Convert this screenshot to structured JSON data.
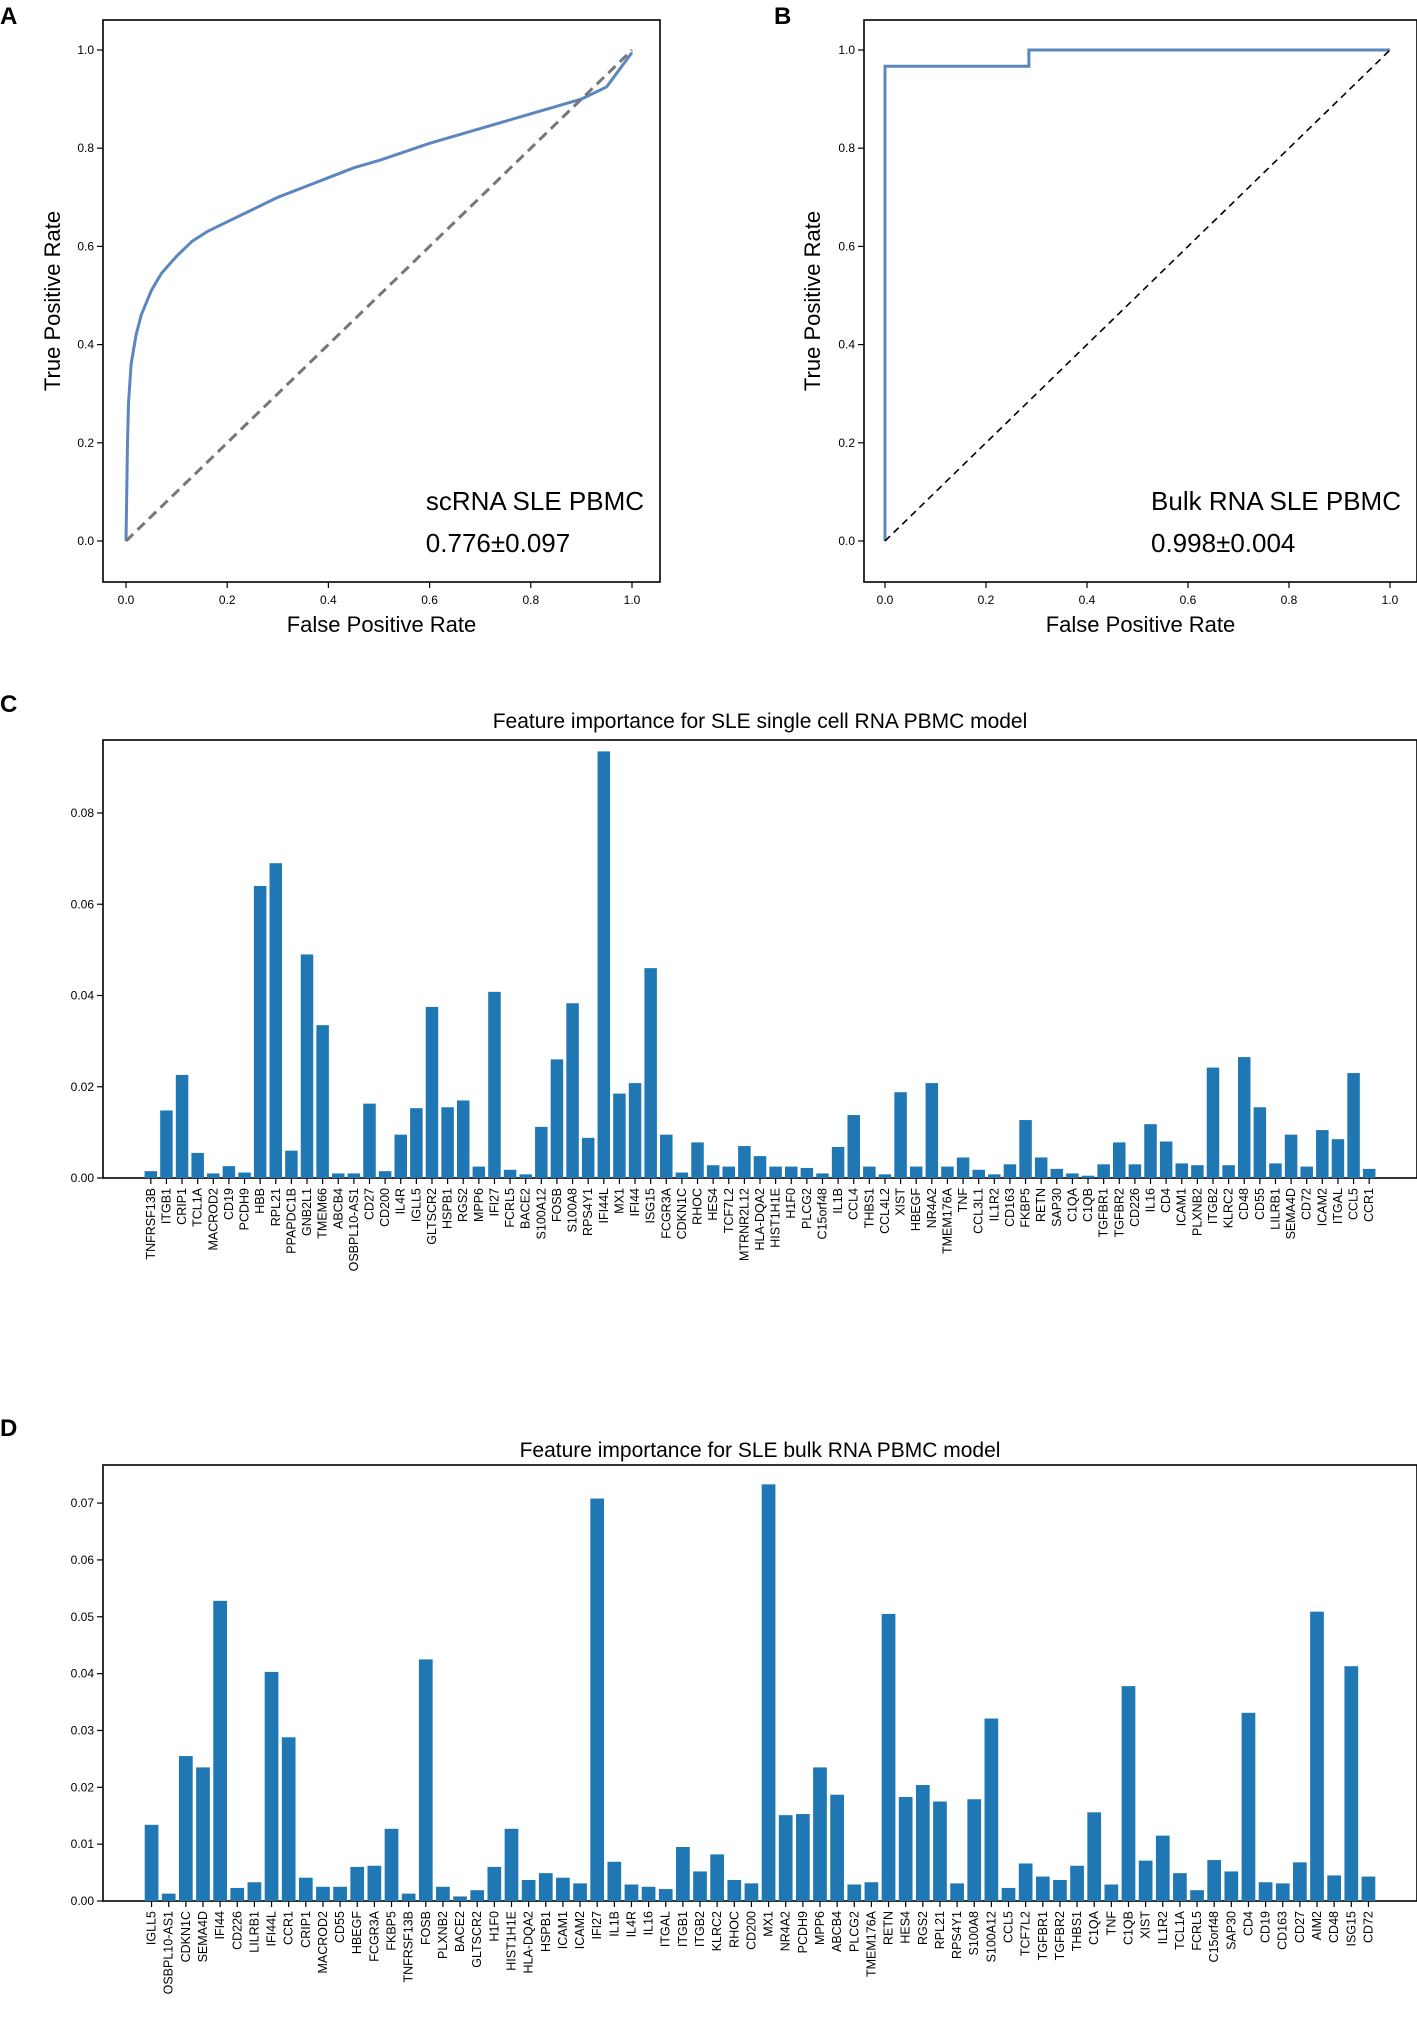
{
  "chart_data": [
    {
      "panel": "A",
      "type": "line",
      "title": "",
      "xlabel": "False Positive Rate",
      "ylabel": "True Positive Rate",
      "xlim": [
        0,
        1
      ],
      "ylim": [
        0,
        1
      ],
      "xticks": [
        "0.0",
        "0.2",
        "0.4",
        "0.6",
        "0.8",
        "1.0"
      ],
      "yticks": [
        "0.0",
        "0.2",
        "0.4",
        "0.6",
        "0.8",
        "1.0"
      ],
      "annotation_label": "scRNA SLE PBMC",
      "annotation_value": "0.776±0.097",
      "series": [
        {
          "name": "ROC",
          "style": "solid",
          "color": "#5b87be",
          "x": [
            0,
            0.003,
            0.005,
            0.01,
            0.02,
            0.03,
            0.05,
            0.07,
            0.1,
            0.13,
            0.16,
            0.2,
            0.25,
            0.3,
            0.35,
            0.4,
            0.45,
            0.5,
            0.6,
            0.7,
            0.8,
            0.9,
            0.95,
            1.0
          ],
          "y": [
            0,
            0.2,
            0.28,
            0.36,
            0.42,
            0.46,
            0.51,
            0.545,
            0.58,
            0.61,
            0.63,
            0.65,
            0.675,
            0.7,
            0.72,
            0.74,
            0.76,
            0.775,
            0.81,
            0.84,
            0.87,
            0.9,
            0.925,
            0.995
          ]
        },
        {
          "name": "chance",
          "style": "dashed",
          "color": "#777777",
          "x": [
            0,
            1
          ],
          "y": [
            0,
            1
          ]
        }
      ]
    },
    {
      "panel": "B",
      "type": "line",
      "title": "",
      "xlabel": "False Positive Rate",
      "ylabel": "True Positive Rate",
      "xlim": [
        0,
        1
      ],
      "ylim": [
        0,
        1
      ],
      "xticks": [
        "0.0",
        "0.2",
        "0.4",
        "0.6",
        "0.8",
        "1.0"
      ],
      "yticks": [
        "0.0",
        "0.2",
        "0.4",
        "0.6",
        "0.8",
        "1.0"
      ],
      "annotation_label": "Bulk RNA SLE PBMC",
      "annotation_value": "0.998±0.004",
      "series": [
        {
          "name": "ROC",
          "style": "solid",
          "color": "#5b87be",
          "x": [
            0,
            0,
            0.285,
            0.285,
            1.0
          ],
          "y": [
            0,
            0.967,
            0.967,
            1.0,
            1.0
          ]
        },
        {
          "name": "chance",
          "style": "dashed",
          "color": "#000000",
          "x": [
            0,
            1
          ],
          "y": [
            0,
            1
          ]
        }
      ]
    },
    {
      "panel": "C",
      "type": "bar",
      "title": "Feature importance for SLE single cell RNA PBMC model",
      "xlabel": "",
      "ylabel": "",
      "ylim": [
        0,
        0.096
      ],
      "yticks": [
        0,
        0.02,
        0.04,
        0.06,
        0.08
      ],
      "ytick_labels": [
        "0.00",
        "0.02",
        "0.04",
        "0.06",
        "0.08"
      ],
      "color": "#1f77b4",
      "categories": [
        "TNFRSF13B",
        "ITGB1",
        "CRIP1",
        "TCL1A",
        "MACROD2",
        "CD19",
        "PCDH9",
        "HBB",
        "RPL21",
        "PPAPDC1B",
        "GNB2L1",
        "TMEM66",
        "ABCB4",
        "OSBPL10-AS1",
        "CD27",
        "CD200",
        "IL4R",
        "IGLL5",
        "GLTSCR2",
        "HSPB1",
        "RGS2",
        "MPP6",
        "IFI27",
        "FCRL5",
        "BACE2",
        "S100A12",
        "FOSB",
        "S100A8",
        "RPS4Y1",
        "IFI44L",
        "MX1",
        "IFI44",
        "ISG15",
        "FCGR3A",
        "CDKN1C",
        "RHOC",
        "HES4",
        "TCF7L2",
        "MTRNR2L12",
        "HLA-DQA2",
        "HIST1H1E",
        "H1F0",
        "PLCG2",
        "C15orf48",
        "IL1B",
        "CCL4",
        "THBS1",
        "CCL4L2",
        "XIST",
        "HBEGF",
        "NR4A2",
        "TMEM176A",
        "TNF",
        "CCL3L1",
        "IL1R2",
        "CD163",
        "FKBP5",
        "RETN",
        "SAP30",
        "C1QA",
        "C1QB",
        "TGFBR1",
        "TGFBR2",
        "CD226",
        "IL16",
        "CD4",
        "ICAM1",
        "PLXNB2",
        "ITGB2",
        "KLRC2",
        "CD48",
        "CD55",
        "LILRB1",
        "SEMA4D",
        "CD72",
        "ICAM2",
        "ITGAL",
        "CCL5",
        "CCR1"
      ],
      "values": [
        0.0015,
        0.0148,
        0.0226,
        0.0055,
        0.001,
        0.0026,
        0.0012,
        0.064,
        0.069,
        0.006,
        0.049,
        0.0335,
        0.001,
        0.001,
        0.0163,
        0.0015,
        0.0095,
        0.0153,
        0.0375,
        0.0155,
        0.017,
        0.0025,
        0.0408,
        0.0018,
        0.0008,
        0.0112,
        0.026,
        0.0383,
        0.0088,
        0.0935,
        0.0185,
        0.0208,
        0.046,
        0.0095,
        0.0012,
        0.0078,
        0.0028,
        0.0025,
        0.007,
        0.0048,
        0.0025,
        0.0025,
        0.0022,
        0.001,
        0.0068,
        0.0138,
        0.0025,
        0.0008,
        0.0188,
        0.0025,
        0.0208,
        0.0025,
        0.0045,
        0.0018,
        0.0008,
        0.003,
        0.0127,
        0.0045,
        0.002,
        0.001,
        0.0005,
        0.003,
        0.0078,
        0.003,
        0.0118,
        0.008,
        0.0032,
        0.0028,
        0.0242,
        0.0028,
        0.0265,
        0.0155,
        0.0032,
        0.0095,
        0.0025,
        0.0105,
        0.0085,
        0.023,
        0.002
      ]
    },
    {
      "panel": "D",
      "type": "bar",
      "title": "Feature importance for SLE bulk RNA PBMC model",
      "xlabel": "",
      "ylabel": "",
      "ylim": [
        0,
        0.0767
      ],
      "yticks": [
        0,
        0.01,
        0.02,
        0.03,
        0.04,
        0.05,
        0.06,
        0.07
      ],
      "ytick_labels": [
        "0.00",
        "0.01",
        "0.02",
        "0.03",
        "0.04",
        "0.05",
        "0.06",
        "0.07"
      ],
      "color": "#1f77b4",
      "categories": [
        "IGLL5",
        "OSBPL10-AS1",
        "CDKN1C",
        "SEMA4D",
        "IFI44",
        "CD226",
        "LILRB1",
        "IFI44L",
        "CCR1",
        "CRIP1",
        "MACROD2",
        "CD55",
        "HBEGF",
        "FCGR3A",
        "FKBP5",
        "TNFRSF13B",
        "FOSB",
        "PLXNB2",
        "BACE2",
        "GLTSCR2",
        "H1F0",
        "HIST1H1E",
        "HLA-DQA2",
        "HSPB1",
        "ICAM1",
        "ICAM2",
        "IFI27",
        "IL1B",
        "IL4R",
        "IL16",
        "ITGAL",
        "ITGB1",
        "ITGB2",
        "KLRC2",
        "RHOC",
        "CD200",
        "MX1",
        "NR4A2",
        "PCDH9",
        "MPP6",
        "ABCB4",
        "PLCG2",
        "TMEM176A",
        "RETN",
        "HES4",
        "RGS2",
        "RPL21",
        "RPS4Y1",
        "S100A8",
        "S100A12",
        "CCL5",
        "TCF7L2",
        "TGFBR1",
        "TGFBR2",
        "THBS1",
        "C1QA",
        "TNF",
        "C1QB",
        "XIST",
        "IL1R2",
        "TCL1A",
        "FCRL5",
        "C15orf48",
        "SAP30",
        "CD4",
        "CD19",
        "CD163",
        "CD27",
        "AIM2",
        "CD48",
        "ISG15",
        "CD72"
      ],
      "values": [
        0.0134,
        0.0013,
        0.0255,
        0.0235,
        0.0528,
        0.0023,
        0.0033,
        0.0403,
        0.0288,
        0.0041,
        0.0025,
        0.0025,
        0.006,
        0.0062,
        0.0127,
        0.0013,
        0.0425,
        0.0025,
        0.0008,
        0.0019,
        0.006,
        0.0127,
        0.0037,
        0.0049,
        0.0041,
        0.0031,
        0.0708,
        0.0069,
        0.0029,
        0.0025,
        0.0021,
        0.0095,
        0.0052,
        0.0082,
        0.0037,
        0.0031,
        0.0733,
        0.0151,
        0.0153,
        0.0235,
        0.0187,
        0.0029,
        0.0033,
        0.0505,
        0.0183,
        0.0204,
        0.0175,
        0.0031,
        0.0179,
        0.0321,
        0.0023,
        0.0066,
        0.0043,
        0.0037,
        0.0062,
        0.0156,
        0.0029,
        0.0378,
        0.0071,
        0.0115,
        0.0049,
        0.0019,
        0.0072,
        0.0052,
        0.0331,
        0.0033,
        0.0031,
        0.0068,
        0.0509,
        0.0045,
        0.0413,
        0.0043
      ]
    }
  ]
}
